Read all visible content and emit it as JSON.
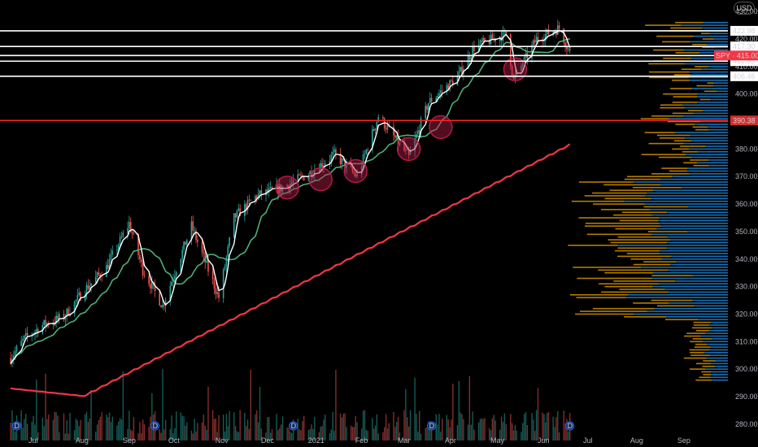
{
  "currency": "USD",
  "colors": {
    "background": "#000000",
    "sma_fast": "#ffffff",
    "sma_mid": "#4caf78",
    "sma_slow": "#f23645",
    "candle_up": "#26a69a",
    "candle_down": "#ef5350",
    "volume_profile_up": "#2196f3",
    "volume_profile_down": "#f0a500",
    "level_line": "#ffffff",
    "support_line": "#ff2222",
    "highlight_circle": "#b71c4a"
  },
  "chart_data": {
    "type": "candlestick",
    "symbol": "SPY",
    "last_price": "415.00",
    "ylim": [
      277,
      433
    ],
    "y_ticks": [
      430,
      420,
      410,
      400,
      390,
      380,
      370,
      360,
      350,
      340,
      330,
      320,
      310,
      300,
      290,
      280
    ],
    "x_ticks": [
      "Jul",
      "Aug",
      "Sep",
      "Oct",
      "Nov",
      "Dec",
      "2021",
      "Feb",
      "Mar",
      "Apr",
      "May",
      "Jun",
      "Jul",
      "Aug",
      "Sep"
    ],
    "price_labels": [
      {
        "label": "422.98",
        "value": 422.98,
        "color": "#ffffff"
      },
      {
        "label": "417.30",
        "value": 417.3,
        "color": "#ffffff"
      },
      {
        "label": "411.95",
        "value": 411.95,
        "color": "#ffffff"
      },
      {
        "label": "406.46",
        "value": 406.46,
        "color": "#ffffff"
      },
      {
        "label": "390.38",
        "value": 390.38,
        "color": "#ff2222"
      }
    ],
    "horizontal_levels": [
      422.98,
      417.3,
      414.0,
      411.95,
      406.46,
      390.38
    ],
    "dividend_markers": [
      "Jun",
      "Sep",
      "Dec",
      "Mar",
      "Jun"
    ],
    "close_series": [
      {
        "date": "2020-06-15",
        "close": 304
      },
      {
        "date": "2020-06-24",
        "close": 311
      },
      {
        "date": "2020-07-06",
        "close": 316
      },
      {
        "date": "2020-07-20",
        "close": 319
      },
      {
        "date": "2020-08-03",
        "close": 329
      },
      {
        "date": "2020-08-17",
        "close": 337
      },
      {
        "date": "2020-09-01",
        "close": 353
      },
      {
        "date": "2020-09-10",
        "close": 336
      },
      {
        "date": "2020-09-23",
        "close": 323
      },
      {
        "date": "2020-10-12",
        "close": 352
      },
      {
        "date": "2020-10-30",
        "close": 326
      },
      {
        "date": "2020-11-09",
        "close": 355
      },
      {
        "date": "2020-11-24",
        "close": 363
      },
      {
        "date": "2020-12-11",
        "close": 366
      },
      {
        "date": "2020-12-28",
        "close": 371
      },
      {
        "date": "2021-01-14",
        "close": 378
      },
      {
        "date": "2021-01-29",
        "close": 370
      },
      {
        "date": "2021-02-12",
        "close": 392
      },
      {
        "date": "2021-03-04",
        "close": 377
      },
      {
        "date": "2021-03-17",
        "close": 397
      },
      {
        "date": "2021-04-05",
        "close": 406
      },
      {
        "date": "2021-04-16",
        "close": 417
      },
      {
        "date": "2021-05-07",
        "close": 422
      },
      {
        "date": "2021-05-12",
        "close": 405
      },
      {
        "date": "2021-05-27",
        "close": 420
      },
      {
        "date": "2021-06-11",
        "close": 424
      },
      {
        "date": "2021-06-18",
        "close": 415
      }
    ]
  }
}
